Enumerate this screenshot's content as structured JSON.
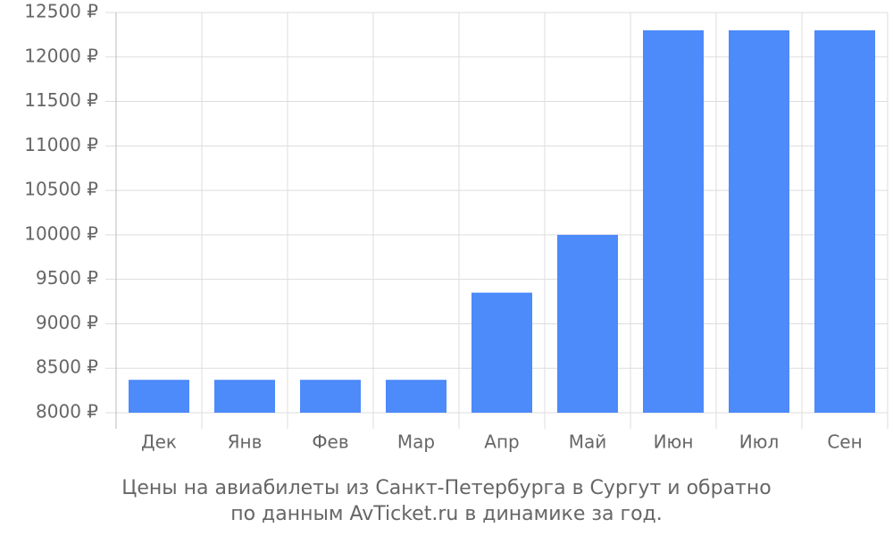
{
  "chart_data": {
    "type": "bar",
    "categories": [
      "Дек",
      "Янв",
      "Фев",
      "Мар",
      "Апр",
      "Май",
      "Июн",
      "Июл",
      "Сен"
    ],
    "values": [
      8370,
      8370,
      8370,
      8370,
      9350,
      10000,
      12300,
      12300,
      12300
    ],
    "color": "#4d8afa",
    "ylim": [
      8000,
      12500
    ],
    "yticks": [
      {
        "value": 8000,
        "label": "8000 ₽"
      },
      {
        "value": 8500,
        "label": "8500 ₽"
      },
      {
        "value": 9000,
        "label": "9000 ₽"
      },
      {
        "value": 9500,
        "label": "9500 ₽"
      },
      {
        "value": 10000,
        "label": "10000 ₽"
      },
      {
        "value": 10500,
        "label": "10500 ₽"
      },
      {
        "value": 11000,
        "label": "11000 ₽"
      },
      {
        "value": 11500,
        "label": "11500 ₽"
      },
      {
        "value": 12000,
        "label": "12000 ₽"
      },
      {
        "value": 12500,
        "label": "12500 ₽"
      }
    ],
    "grid": true,
    "caption": [
      "Цены на авиабилеты из Санкт-Петербурга в Сургут и обратно",
      "по данным AvTicket.ru в динамике за год."
    ]
  }
}
